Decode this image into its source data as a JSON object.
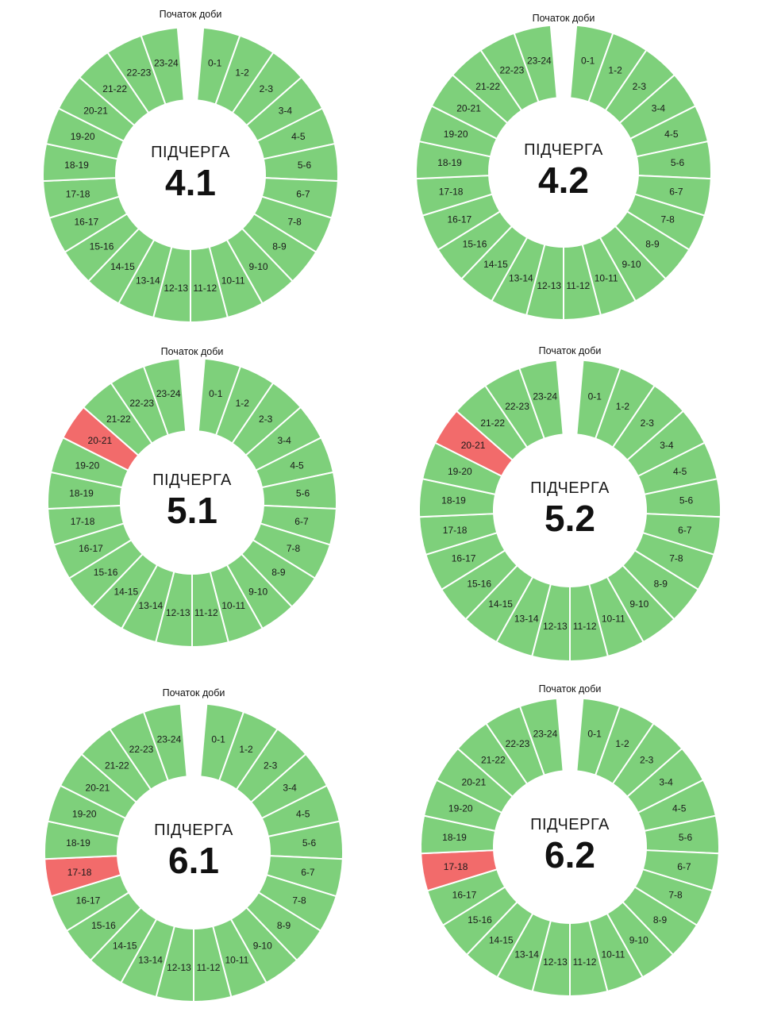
{
  "colors": {
    "available": "#7ed07b",
    "outage": "#f26b6b",
    "separator": "#ffffff"
  },
  "chart_data": [
    {
      "type": "pie",
      "start_label": "Початок доби",
      "center_label": "ПІДЧЕРГА",
      "queue": "4.1",
      "slots": [
        "0-1",
        "1-2",
        "2-3",
        "3-4",
        "4-5",
        "5-6",
        "6-7",
        "7-8",
        "8-9",
        "9-10",
        "10-11",
        "11-12",
        "12-13",
        "13-14",
        "14-15",
        "15-16",
        "16-17",
        "17-18",
        "18-19",
        "19-20",
        "20-21",
        "21-22",
        "22-23",
        "23-24"
      ],
      "outage_slots": []
    },
    {
      "type": "pie",
      "start_label": "Початок доби",
      "center_label": "ПІДЧЕРГА",
      "queue": "4.2",
      "slots": [
        "0-1",
        "1-2",
        "2-3",
        "3-4",
        "4-5",
        "5-6",
        "6-7",
        "7-8",
        "8-9",
        "9-10",
        "10-11",
        "11-12",
        "12-13",
        "13-14",
        "14-15",
        "15-16",
        "16-17",
        "17-18",
        "18-19",
        "19-20",
        "20-21",
        "21-22",
        "22-23",
        "23-24"
      ],
      "outage_slots": []
    },
    {
      "type": "pie",
      "start_label": "Початок доби",
      "center_label": "ПІДЧЕРГА",
      "queue": "5.1",
      "slots": [
        "0-1",
        "1-2",
        "2-3",
        "3-4",
        "4-5",
        "5-6",
        "6-7",
        "7-8",
        "8-9",
        "9-10",
        "10-11",
        "11-12",
        "12-13",
        "13-14",
        "14-15",
        "15-16",
        "16-17",
        "17-18",
        "18-19",
        "19-20",
        "20-21",
        "21-22",
        "22-23",
        "23-24"
      ],
      "outage_slots": [
        "20-21"
      ]
    },
    {
      "type": "pie",
      "start_label": "Початок доби",
      "center_label": "ПІДЧЕРГА",
      "queue": "5.2",
      "slots": [
        "0-1",
        "1-2",
        "2-3",
        "3-4",
        "4-5",
        "5-6",
        "6-7",
        "7-8",
        "8-9",
        "9-10",
        "10-11",
        "11-12",
        "12-13",
        "13-14",
        "14-15",
        "15-16",
        "16-17",
        "17-18",
        "18-19",
        "19-20",
        "20-21",
        "21-22",
        "22-23",
        "23-24"
      ],
      "outage_slots": [
        "20-21"
      ]
    },
    {
      "type": "pie",
      "start_label": "Початок доби",
      "center_label": "ПІДЧЕРГА",
      "queue": "6.1",
      "slots": [
        "0-1",
        "1-2",
        "2-3",
        "3-4",
        "4-5",
        "5-6",
        "6-7",
        "7-8",
        "8-9",
        "9-10",
        "10-11",
        "11-12",
        "12-13",
        "13-14",
        "14-15",
        "15-16",
        "16-17",
        "17-18",
        "18-19",
        "19-20",
        "20-21",
        "21-22",
        "22-23",
        "23-24"
      ],
      "outage_slots": [
        "17-18"
      ]
    },
    {
      "type": "pie",
      "start_label": "Початок доби",
      "center_label": "ПІДЧЕРГА",
      "queue": "6.2",
      "slots": [
        "0-1",
        "1-2",
        "2-3",
        "3-4",
        "4-5",
        "5-6",
        "6-7",
        "7-8",
        "8-9",
        "9-10",
        "10-11",
        "11-12",
        "12-13",
        "13-14",
        "14-15",
        "15-16",
        "16-17",
        "17-18",
        "18-19",
        "19-20",
        "20-21",
        "21-22",
        "22-23",
        "23-24"
      ],
      "outage_slots": [
        "17-18"
      ]
    }
  ]
}
